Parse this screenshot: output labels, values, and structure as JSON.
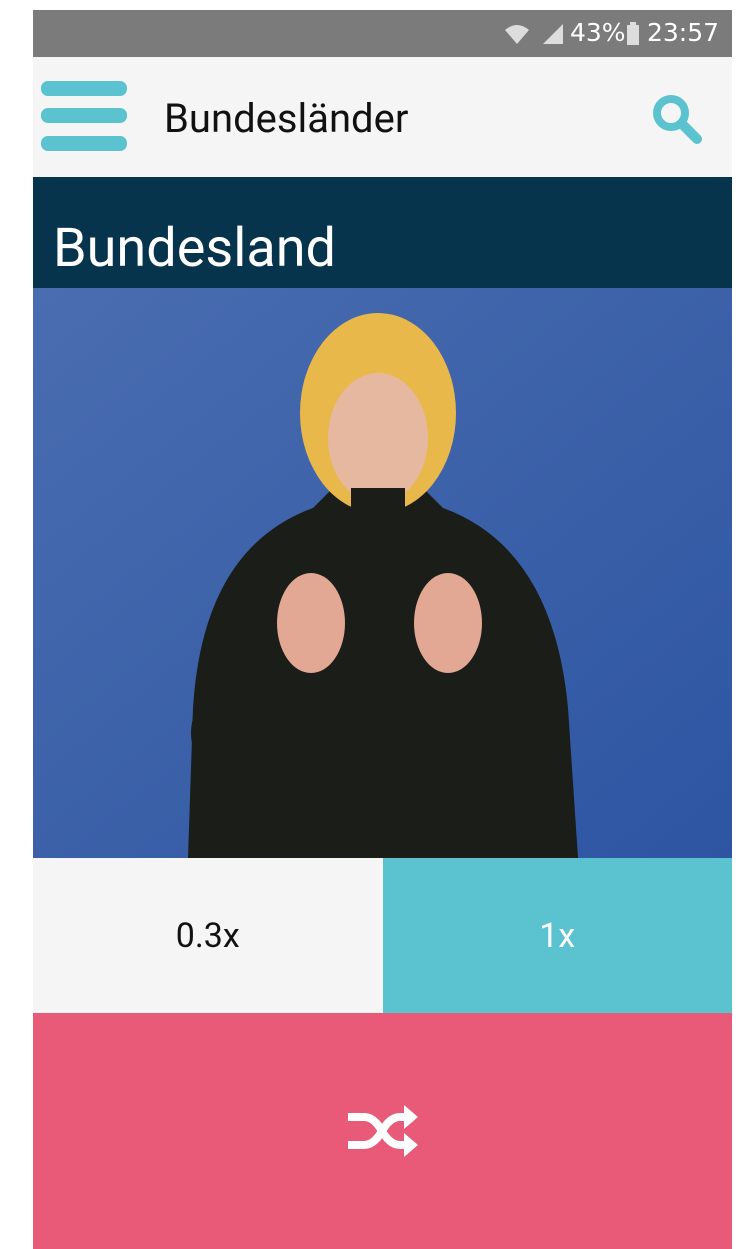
{
  "status_bar": {
    "battery": "43%",
    "time": "23:57"
  },
  "app_bar": {
    "title": "Bundesländer"
  },
  "word": {
    "title": "Bundesland"
  },
  "speed_buttons": [
    "0.3x",
    "1x"
  ]
}
